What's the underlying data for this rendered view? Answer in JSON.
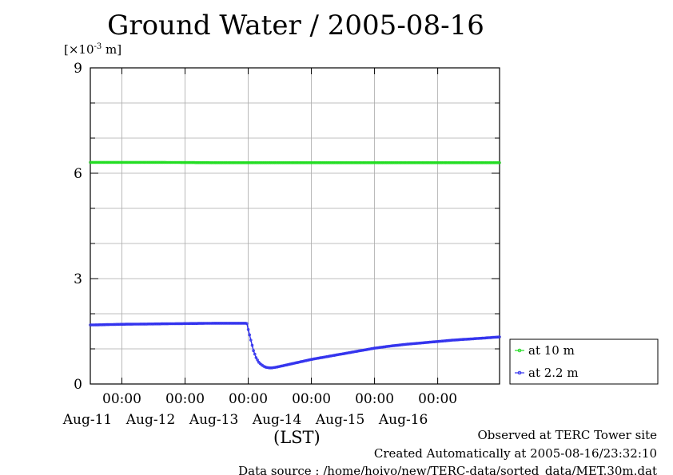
{
  "chart_data": {
    "type": "line",
    "title": "Ground Water / 2005-08-16",
    "ylabel": "[×10-3 m]",
    "xlabel": "(LST)",
    "ylim": [
      0,
      9
    ],
    "yticks": [
      0,
      3,
      6,
      9
    ],
    "xlim": [
      "2005-08-10T12:00",
      "2005-08-16T23:30"
    ],
    "xticks": [
      {
        "x": "2005-08-11T00:00",
        "time": "00:00",
        "date": "Aug-11"
      },
      {
        "x": "2005-08-12T00:00",
        "time": "00:00",
        "date": "Aug-12"
      },
      {
        "x": "2005-08-13T00:00",
        "time": "00:00",
        "date": "Aug-13"
      },
      {
        "x": "2005-08-14T00:00",
        "time": "00:00",
        "date": "Aug-14"
      },
      {
        "x": "2005-08-15T00:00",
        "time": "00:00",
        "date": "Aug-15"
      },
      {
        "x": "2005-08-16T00:00",
        "time": "00:00",
        "date": "Aug-16"
      }
    ],
    "grid": true,
    "legend_position": "right",
    "series": [
      {
        "name": "at 10 m",
        "color": "#22dd22",
        "points": [
          [
            "2005-08-10T12:00",
            6.31
          ],
          [
            "2005-08-11T12:00",
            6.31
          ],
          [
            "2005-08-12T12:00",
            6.3
          ],
          [
            "2005-08-13T12:00",
            6.3
          ],
          [
            "2005-08-14T12:00",
            6.3
          ],
          [
            "2005-08-15T12:00",
            6.3
          ],
          [
            "2005-08-16T23:30",
            6.3
          ]
        ]
      },
      {
        "name": "at 2.2 m",
        "color": "#3333ee",
        "points": [
          [
            "2005-08-10T12:00",
            1.68
          ],
          [
            "2005-08-11T00:00",
            1.7
          ],
          [
            "2005-08-11T12:00",
            1.71
          ],
          [
            "2005-08-12T00:00",
            1.72
          ],
          [
            "2005-08-12T12:00",
            1.73
          ],
          [
            "2005-08-12T23:00",
            1.73
          ],
          [
            "2005-08-12T23:30",
            1.72
          ],
          [
            "2005-08-13T00:00",
            1.55
          ],
          [
            "2005-08-13T01:00",
            1.25
          ],
          [
            "2005-08-13T02:00",
            0.95
          ],
          [
            "2005-08-13T03:00",
            0.75
          ],
          [
            "2005-08-13T04:00",
            0.62
          ],
          [
            "2005-08-13T05:00",
            0.55
          ],
          [
            "2005-08-13T06:00",
            0.5
          ],
          [
            "2005-08-13T07:00",
            0.47
          ],
          [
            "2005-08-13T08:00",
            0.46
          ],
          [
            "2005-08-13T09:00",
            0.46
          ],
          [
            "2005-08-13T10:00",
            0.47
          ],
          [
            "2005-08-13T12:00",
            0.5
          ],
          [
            "2005-08-13T15:00",
            0.55
          ],
          [
            "2005-08-13T18:00",
            0.6
          ],
          [
            "2005-08-14T00:00",
            0.7
          ],
          [
            "2005-08-14T06:00",
            0.78
          ],
          [
            "2005-08-14T12:00",
            0.86
          ],
          [
            "2005-08-14T18:00",
            0.94
          ],
          [
            "2005-08-15T00:00",
            1.02
          ],
          [
            "2005-08-15T06:00",
            1.08
          ],
          [
            "2005-08-15T12:00",
            1.13
          ],
          [
            "2005-08-15T18:00",
            1.17
          ],
          [
            "2005-08-16T00:00",
            1.21
          ],
          [
            "2005-08-16T06:00",
            1.25
          ],
          [
            "2005-08-16T12:00",
            1.28
          ],
          [
            "2005-08-16T18:00",
            1.31
          ],
          [
            "2005-08-16T23:30",
            1.34
          ]
        ]
      }
    ]
  },
  "footer": {
    "observed": "Observed at TERC Tower site",
    "created": "Created Automatically at 2005-08-16/23:32:10",
    "source": "Data source : /home/hoivo/new/TERC-data/sorted_data/MET.30m.dat"
  }
}
